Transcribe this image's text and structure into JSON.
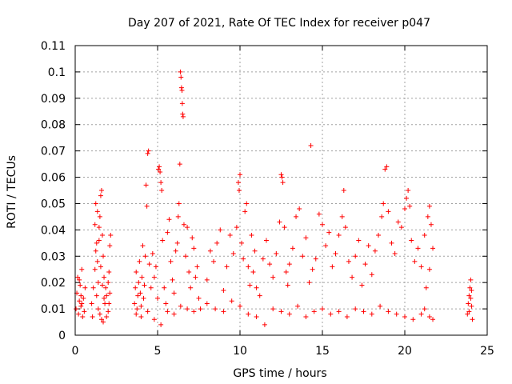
{
  "chart_data": {
    "type": "scatter",
    "title": "Day 207 of 2021, Rate Of TEC Index for receiver p047",
    "xlabel": "GPS time / hours",
    "ylabel": "ROTI / TECUs",
    "xlim": [
      0,
      25
    ],
    "ylim": [
      0,
      0.11
    ],
    "xticks": [
      0,
      5,
      10,
      15,
      20,
      25
    ],
    "yticks": [
      0,
      0.01,
      0.02,
      0.03,
      0.04,
      0.05,
      0.06,
      0.07,
      0.08,
      0.09,
      0.1,
      0.11
    ],
    "xtick_labels": [
      "0",
      "5",
      "10",
      "15",
      "20",
      "25"
    ],
    "ytick_labels": [
      "0",
      "0.01",
      "0.02",
      "0.03",
      "0.04",
      "0.05",
      "0.06",
      "0.07",
      "0.08",
      "0.09",
      "0.1",
      "0.11"
    ],
    "grid": true,
    "marker": "+",
    "color": "#ff0000",
    "series": [
      {
        "name": "ROTI p047",
        "points": [
          [
            0.05,
            0.01
          ],
          [
            0.1,
            0.016
          ],
          [
            0.15,
            0.022
          ],
          [
            0.2,
            0.008
          ],
          [
            0.25,
            0.013
          ],
          [
            0.3,
            0.019
          ],
          [
            0.35,
            0.011
          ],
          [
            0.4,
            0.025
          ],
          [
            0.5,
            0.014
          ],
          [
            0.55,
            0.009
          ],
          [
            0.45,
            0.007
          ],
          [
            0.6,
            0.018
          ],
          [
            0.25,
            0.021
          ],
          [
            0.35,
            0.015
          ],
          [
            0.4,
            0.012
          ],
          [
            1.0,
            0.012
          ],
          [
            1.05,
            0.007
          ],
          [
            1.1,
            0.018
          ],
          [
            1.2,
            0.042
          ],
          [
            1.25,
            0.05
          ],
          [
            1.3,
            0.035
          ],
          [
            1.35,
            0.028
          ],
          [
            1.4,
            0.02
          ],
          [
            1.45,
            0.041
          ],
          [
            1.5,
            0.045
          ],
          [
            1.55,
            0.053
          ],
          [
            1.6,
            0.055
          ],
          [
            1.65,
            0.038
          ],
          [
            1.7,
            0.03
          ],
          [
            1.75,
            0.022
          ],
          [
            1.3,
            0.015
          ],
          [
            1.4,
            0.01
          ],
          [
            1.5,
            0.008
          ],
          [
            1.6,
            0.006
          ],
          [
            1.8,
            0.012
          ],
          [
            1.85,
            0.018
          ],
          [
            1.9,
            0.015
          ],
          [
            2.0,
            0.02
          ],
          [
            2.05,
            0.012
          ],
          [
            2.1,
            0.034
          ],
          [
            2.15,
            0.038
          ],
          [
            2.0,
            0.009
          ],
          [
            1.9,
            0.007
          ],
          [
            1.7,
            0.005
          ],
          [
            1.2,
            0.025
          ],
          [
            1.25,
            0.032
          ],
          [
            1.35,
            0.047
          ],
          [
            1.45,
            0.036
          ],
          [
            1.55,
            0.026
          ],
          [
            1.65,
            0.019
          ],
          [
            1.75,
            0.014
          ],
          [
            2.1,
            0.016
          ],
          [
            2.05,
            0.024
          ],
          [
            3.6,
            0.012
          ],
          [
            3.65,
            0.018
          ],
          [
            3.7,
            0.024
          ],
          [
            3.75,
            0.01
          ],
          [
            3.8,
            0.015
          ],
          [
            3.85,
            0.02
          ],
          [
            3.9,
            0.028
          ],
          [
            3.95,
            0.016
          ],
          [
            4.0,
            0.011
          ],
          [
            4.05,
            0.022
          ],
          [
            4.1,
            0.034
          ],
          [
            4.15,
            0.014
          ],
          [
            4.2,
            0.019
          ],
          [
            4.25,
            0.03
          ],
          [
            4.3,
            0.057
          ],
          [
            4.35,
            0.049
          ],
          [
            4.4,
            0.069
          ],
          [
            4.45,
            0.07
          ],
          [
            4.5,
            0.027
          ],
          [
            4.6,
            0.018
          ],
          [
            4.7,
            0.031
          ],
          [
            4.8,
            0.022
          ],
          [
            4.9,
            0.026
          ],
          [
            5.0,
            0.014
          ],
          [
            5.05,
            0.063
          ],
          [
            5.1,
            0.064
          ],
          [
            5.15,
            0.062
          ],
          [
            5.2,
            0.058
          ],
          [
            5.25,
            0.055
          ],
          [
            5.3,
            0.036
          ],
          [
            5.4,
            0.018
          ],
          [
            5.5,
            0.012
          ],
          [
            5.6,
            0.039
          ],
          [
            5.7,
            0.044
          ],
          [
            5.8,
            0.028
          ],
          [
            5.9,
            0.021
          ],
          [
            6.0,
            0.016
          ],
          [
            6.1,
            0.032
          ],
          [
            6.2,
            0.035
          ],
          [
            6.25,
            0.045
          ],
          [
            6.3,
            0.05
          ],
          [
            6.35,
            0.065
          ],
          [
            6.38,
            0.1
          ],
          [
            6.42,
            0.098
          ],
          [
            6.45,
            0.094
          ],
          [
            6.48,
            0.093
          ],
          [
            6.5,
            0.088
          ],
          [
            6.52,
            0.084
          ],
          [
            6.55,
            0.083
          ],
          [
            6.6,
            0.042
          ],
          [
            6.7,
            0.03
          ],
          [
            6.8,
            0.041
          ],
          [
            6.9,
            0.024
          ],
          [
            7.0,
            0.018
          ],
          [
            7.1,
            0.037
          ],
          [
            7.2,
            0.033
          ],
          [
            7.3,
            0.022
          ],
          [
            7.4,
            0.026
          ],
          [
            7.5,
            0.014
          ],
          [
            7.6,
            0.01
          ],
          [
            3.7,
            0.008
          ],
          [
            4.0,
            0.007
          ],
          [
            4.4,
            0.009
          ],
          [
            4.8,
            0.006
          ],
          [
            5.2,
            0.004
          ],
          [
            5.6,
            0.009
          ],
          [
            6.0,
            0.008
          ],
          [
            6.4,
            0.011
          ],
          [
            6.8,
            0.01
          ],
          [
            7.2,
            0.009
          ],
          [
            8.0,
            0.021
          ],
          [
            8.2,
            0.032
          ],
          [
            8.4,
            0.028
          ],
          [
            8.6,
            0.035
          ],
          [
            8.8,
            0.04
          ],
          [
            9.0,
            0.017
          ],
          [
            9.2,
            0.026
          ],
          [
            9.4,
            0.038
          ],
          [
            9.6,
            0.031
          ],
          [
            9.8,
            0.041
          ],
          [
            9.9,
            0.058
          ],
          [
            10.0,
            0.061
          ],
          [
            9.95,
            0.055
          ],
          [
            10.1,
            0.035
          ],
          [
            10.2,
            0.029
          ],
          [
            10.3,
            0.047
          ],
          [
            10.4,
            0.05
          ],
          [
            10.5,
            0.026
          ],
          [
            10.6,
            0.019
          ],
          [
            10.7,
            0.038
          ],
          [
            10.8,
            0.024
          ],
          [
            10.9,
            0.032
          ],
          [
            11.0,
            0.018
          ],
          [
            11.2,
            0.015
          ],
          [
            11.4,
            0.029
          ],
          [
            11.6,
            0.036
          ],
          [
            11.8,
            0.027
          ],
          [
            12.0,
            0.022
          ],
          [
            12.2,
            0.031
          ],
          [
            12.4,
            0.043
          ],
          [
            12.5,
            0.061
          ],
          [
            12.55,
            0.06
          ],
          [
            12.6,
            0.058
          ],
          [
            12.7,
            0.041
          ],
          [
            12.8,
            0.024
          ],
          [
            12.9,
            0.019
          ],
          [
            13.0,
            0.027
          ],
          [
            13.2,
            0.033
          ],
          [
            13.4,
            0.045
          ],
          [
            13.6,
            0.048
          ],
          [
            13.8,
            0.03
          ],
          [
            14.0,
            0.037
          ],
          [
            14.2,
            0.02
          ],
          [
            14.3,
            0.072
          ],
          [
            14.4,
            0.025
          ],
          [
            14.6,
            0.029
          ],
          [
            14.8,
            0.046
          ],
          [
            15.0,
            0.042
          ],
          [
            15.2,
            0.034
          ],
          [
            15.4,
            0.039
          ],
          [
            15.6,
            0.026
          ],
          [
            15.8,
            0.031
          ],
          [
            16.0,
            0.038
          ],
          [
            16.2,
            0.045
          ],
          [
            16.3,
            0.055
          ],
          [
            16.4,
            0.041
          ],
          [
            16.6,
            0.028
          ],
          [
            16.8,
            0.022
          ],
          [
            17.0,
            0.03
          ],
          [
            17.2,
            0.036
          ],
          [
            17.4,
            0.019
          ],
          [
            17.6,
            0.027
          ],
          [
            17.8,
            0.034
          ],
          [
            18.0,
            0.023
          ],
          [
            18.2,
            0.032
          ],
          [
            18.4,
            0.038
          ],
          [
            18.6,
            0.045
          ],
          [
            18.7,
            0.05
          ],
          [
            18.8,
            0.063
          ],
          [
            18.9,
            0.064
          ],
          [
            19.0,
            0.047
          ],
          [
            19.2,
            0.035
          ],
          [
            19.4,
            0.031
          ],
          [
            19.6,
            0.043
          ],
          [
            19.8,
            0.041
          ],
          [
            20.0,
            0.048
          ],
          [
            20.1,
            0.052
          ],
          [
            20.2,
            0.055
          ],
          [
            20.3,
            0.049
          ],
          [
            20.4,
            0.036
          ],
          [
            20.6,
            0.028
          ],
          [
            20.8,
            0.033
          ],
          [
            21.0,
            0.026
          ],
          [
            21.2,
            0.038
          ],
          [
            21.4,
            0.045
          ],
          [
            21.5,
            0.049
          ],
          [
            21.6,
            0.042
          ],
          [
            21.7,
            0.033
          ],
          [
            21.5,
            0.025
          ],
          [
            21.3,
            0.018
          ],
          [
            8.0,
            0.012
          ],
          [
            8.5,
            0.01
          ],
          [
            9.0,
            0.009
          ],
          [
            9.5,
            0.013
          ],
          [
            10.0,
            0.011
          ],
          [
            10.5,
            0.008
          ],
          [
            11.0,
            0.007
          ],
          [
            11.5,
            0.004
          ],
          [
            12.0,
            0.01
          ],
          [
            12.5,
            0.009
          ],
          [
            13.0,
            0.008
          ],
          [
            13.5,
            0.011
          ],
          [
            14.0,
            0.007
          ],
          [
            14.5,
            0.009
          ],
          [
            15.0,
            0.01
          ],
          [
            15.5,
            0.008
          ],
          [
            16.0,
            0.009
          ],
          [
            16.5,
            0.007
          ],
          [
            17.0,
            0.01
          ],
          [
            17.5,
            0.009
          ],
          [
            18.0,
            0.008
          ],
          [
            18.5,
            0.011
          ],
          [
            19.0,
            0.009
          ],
          [
            19.5,
            0.008
          ],
          [
            20.0,
            0.007
          ],
          [
            20.5,
            0.006
          ],
          [
            21.0,
            0.008
          ],
          [
            21.5,
            0.007
          ],
          [
            21.7,
            0.006
          ],
          [
            21.2,
            0.01
          ],
          [
            23.8,
            0.008
          ],
          [
            23.85,
            0.012
          ],
          [
            23.9,
            0.015
          ],
          [
            23.95,
            0.018
          ],
          [
            24.0,
            0.021
          ],
          [
            24.05,
            0.011
          ],
          [
            24.1,
            0.006
          ],
          [
            23.9,
            0.009
          ],
          [
            24.0,
            0.014
          ],
          [
            24.05,
            0.017
          ]
        ]
      }
    ]
  }
}
